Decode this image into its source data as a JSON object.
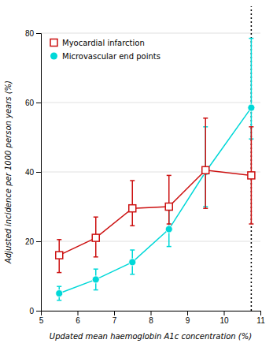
{
  "chart_data": {
    "type": "line",
    "x": [
      5.5,
      6.5,
      7.5,
      8.5,
      9.5,
      10.75
    ],
    "series": [
      {
        "name": "Myocardial infarction",
        "color": "#cc1111",
        "marker": "square",
        "values": [
          16.0,
          21.0,
          29.5,
          30.0,
          40.5,
          39.0
        ],
        "errors_minus": [
          5.0,
          5.5,
          5.0,
          5.0,
          11.0,
          14.0
        ],
        "errors_plus": [
          4.5,
          6.0,
          8.0,
          9.0,
          15.0,
          14.0
        ]
      },
      {
        "name": "Microvascular end points",
        "color": "#00d8d8",
        "marker": "circle",
        "values": [
          5.0,
          9.0,
          14.0,
          23.5,
          40.0,
          58.5
        ],
        "errors_minus": [
          2.0,
          3.0,
          3.5,
          5.0,
          10.0,
          9.0
        ],
        "errors_plus": [
          2.0,
          3.0,
          3.5,
          5.5,
          13.0,
          20.0
        ]
      }
    ],
    "xlabel": "Updated mean haemoglobin A1c concentration (%)",
    "ylabel": "Adjusted incidence per 1000 person years (%)",
    "xlim": [
      5.0,
      11.0
    ],
    "ylim": [
      0,
      80
    ],
    "xticks": [
      5,
      6,
      7,
      8,
      9,
      10,
      11
    ],
    "yticks": [
      0,
      20,
      40,
      60,
      80
    ],
    "grid": true,
    "legend": "upper left",
    "reference_line": {
      "x": 10.75,
      "line_style": "dotted"
    }
  }
}
